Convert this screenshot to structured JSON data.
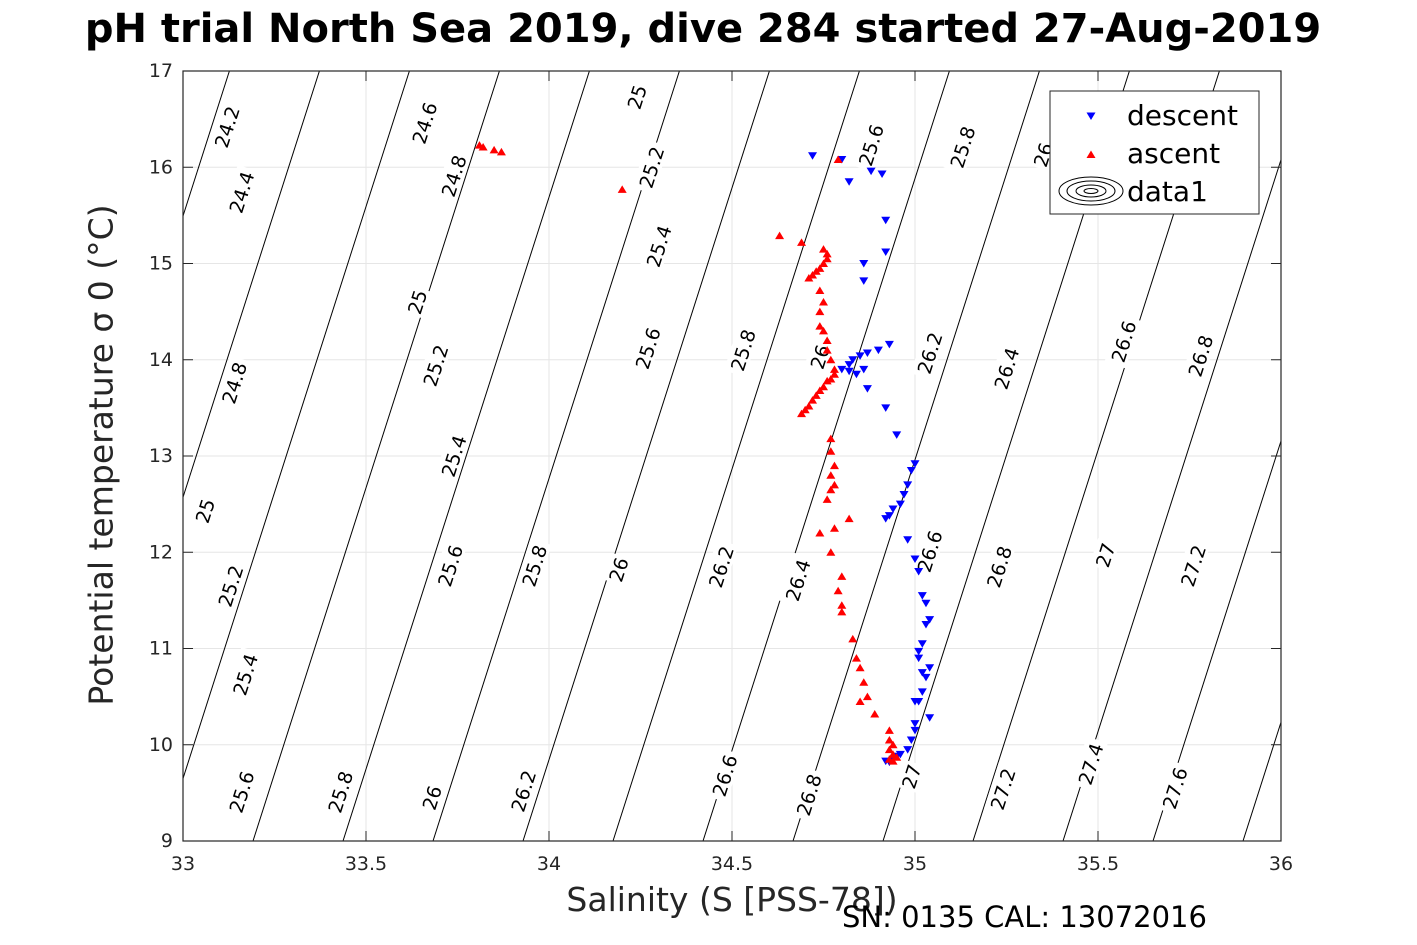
{
  "figure": {
    "title": "pH trial North Sea 2019, dive 284 started 27-Aug-2019",
    "footer": "SN: 0135  CAL: 13072016"
  },
  "chart_data": {
    "type": "scatter",
    "title": "pH trial North Sea 2019, dive 284 started 27-Aug-2019",
    "xlabel": "Salinity (S [PSS-78])",
    "ylabel": "Potential temperature σ 0 (°C)",
    "xlim": [
      33,
      36
    ],
    "ylim": [
      9,
      17
    ],
    "xticks": [
      33,
      33.5,
      34,
      34.5,
      35,
      35.5,
      36
    ],
    "xtick_labels": [
      "33",
      "33.5",
      "34",
      "34.5",
      "35",
      "35.5",
      "36"
    ],
    "yticks": [
      9,
      10,
      11,
      12,
      13,
      14,
      15,
      16,
      17
    ],
    "ytick_labels": [
      "9",
      "10",
      "11",
      "12",
      "13",
      "14",
      "15",
      "16",
      "17"
    ],
    "grid": true,
    "legend": {
      "position": "top-right",
      "entries": [
        "descent",
        "ascent",
        "data1"
      ]
    },
    "series": [
      {
        "name": "descent",
        "marker": "triangle-down",
        "color": "#0000ff",
        "points": [
          [
            34.72,
            16.12
          ],
          [
            34.8,
            16.08
          ],
          [
            34.82,
            15.85
          ],
          [
            34.88,
            15.96
          ],
          [
            34.91,
            15.93
          ],
          [
            34.92,
            15.45
          ],
          [
            34.92,
            15.12
          ],
          [
            34.86,
            15.0
          ],
          [
            34.86,
            14.82
          ],
          [
            34.8,
            13.9
          ],
          [
            34.82,
            13.95
          ],
          [
            34.83,
            14.0
          ],
          [
            34.85,
            14.04
          ],
          [
            34.87,
            14.07
          ],
          [
            34.9,
            14.1
          ],
          [
            34.93,
            14.16
          ],
          [
            34.84,
            13.85
          ],
          [
            34.86,
            13.9
          ],
          [
            34.87,
            13.7
          ],
          [
            34.82,
            13.88
          ],
          [
            34.92,
            13.5
          ],
          [
            34.95,
            13.22
          ],
          [
            35.0,
            12.92
          ],
          [
            34.99,
            12.85
          ],
          [
            34.98,
            12.7
          ],
          [
            34.97,
            12.6
          ],
          [
            34.96,
            12.5
          ],
          [
            34.94,
            12.45
          ],
          [
            34.93,
            12.38
          ],
          [
            34.92,
            12.35
          ],
          [
            34.98,
            12.13
          ],
          [
            35.0,
            11.93
          ],
          [
            35.01,
            11.8
          ],
          [
            35.02,
            11.55
          ],
          [
            35.03,
            11.47
          ],
          [
            35.04,
            11.3
          ],
          [
            35.03,
            11.25
          ],
          [
            35.02,
            11.05
          ],
          [
            35.01,
            10.97
          ],
          [
            35.01,
            10.9
          ],
          [
            35.02,
            10.75
          ],
          [
            35.03,
            10.7
          ],
          [
            35.04,
            10.8
          ],
          [
            35.02,
            10.55
          ],
          [
            35.01,
            10.45
          ],
          [
            35.0,
            10.45
          ],
          [
            35.04,
            10.28
          ],
          [
            35.0,
            10.22
          ],
          [
            35.0,
            10.15
          ],
          [
            34.99,
            10.05
          ],
          [
            34.98,
            9.95
          ],
          [
            34.96,
            9.9
          ],
          [
            34.95,
            9.88
          ],
          [
            34.94,
            9.85
          ],
          [
            34.93,
            9.82
          ],
          [
            34.92,
            9.83
          ]
        ]
      },
      {
        "name": "ascent",
        "marker": "triangle-up",
        "color": "#ff0000",
        "points": [
          [
            33.81,
            16.23
          ],
          [
            33.82,
            16.21
          ],
          [
            33.85,
            16.18
          ],
          [
            33.87,
            16.16
          ],
          [
            34.2,
            15.77
          ],
          [
            34.79,
            16.08
          ],
          [
            34.63,
            15.29
          ],
          [
            34.69,
            15.22
          ],
          [
            34.75,
            15.15
          ],
          [
            34.76,
            15.1
          ],
          [
            34.76,
            15.05
          ],
          [
            34.75,
            15.0
          ],
          [
            34.74,
            14.95
          ],
          [
            34.73,
            14.92
          ],
          [
            34.72,
            14.88
          ],
          [
            34.71,
            14.85
          ],
          [
            34.74,
            14.72
          ],
          [
            34.75,
            14.6
          ],
          [
            34.74,
            14.5
          ],
          [
            34.74,
            14.35
          ],
          [
            34.75,
            14.3
          ],
          [
            34.76,
            14.2
          ],
          [
            34.76,
            14.1
          ],
          [
            34.77,
            14.0
          ],
          [
            34.78,
            13.9
          ],
          [
            34.78,
            13.85
          ],
          [
            34.77,
            13.8
          ],
          [
            34.76,
            13.78
          ],
          [
            34.75,
            13.72
          ],
          [
            34.74,
            13.68
          ],
          [
            34.73,
            13.63
          ],
          [
            34.72,
            13.58
          ],
          [
            34.71,
            13.52
          ],
          [
            34.7,
            13.48
          ],
          [
            34.69,
            13.44
          ],
          [
            34.77,
            13.18
          ],
          [
            34.77,
            13.05
          ],
          [
            34.78,
            12.9
          ],
          [
            34.77,
            12.8
          ],
          [
            34.78,
            12.7
          ],
          [
            34.77,
            12.65
          ],
          [
            34.76,
            12.55
          ],
          [
            34.82,
            12.35
          ],
          [
            34.78,
            12.25
          ],
          [
            34.74,
            12.2
          ],
          [
            34.77,
            12.0
          ],
          [
            34.8,
            11.75
          ],
          [
            34.79,
            11.6
          ],
          [
            34.8,
            11.45
          ],
          [
            34.8,
            11.38
          ],
          [
            34.83,
            11.1
          ],
          [
            34.84,
            10.9
          ],
          [
            34.85,
            10.8
          ],
          [
            34.86,
            10.65
          ],
          [
            34.87,
            10.5
          ],
          [
            34.85,
            10.45
          ],
          [
            34.89,
            10.32
          ],
          [
            34.93,
            10.15
          ],
          [
            34.93,
            10.05
          ],
          [
            34.94,
            10.0
          ],
          [
            34.93,
            9.95
          ],
          [
            34.94,
            9.9
          ],
          [
            34.95,
            9.87
          ],
          [
            34.93,
            9.85
          ],
          [
            34.94,
            9.83
          ]
        ]
      }
    ],
    "contours": {
      "type": "sigma-theta isopycnals",
      "levels": [
        24.2,
        24.4,
        24.6,
        24.8,
        25,
        25.2,
        25.4,
        25.6,
        25.8,
        26,
        26.2,
        26.4,
        26.6,
        26.8,
        27,
        27.2,
        27.4,
        27.6
      ],
      "labels": [
        {
          "text": "24.2",
          "x": 33.12,
          "y": 16.42
        },
        {
          "text": "24.4",
          "x": 33.16,
          "y": 15.74
        },
        {
          "text": "24.6",
          "x": 33.66,
          "y": 16.46
        },
        {
          "text": "24.8",
          "x": 33.74,
          "y": 15.91
        },
        {
          "text": "25",
          "x": 34.24,
          "y": 16.73
        },
        {
          "text": "25.2",
          "x": 34.28,
          "y": 16.0
        },
        {
          "text": "25.4",
          "x": 34.3,
          "y": 15.18
        },
        {
          "text": "25.6",
          "x": 34.88,
          "y": 16.23
        },
        {
          "text": "25.8",
          "x": 35.13,
          "y": 16.21
        },
        {
          "text": "26",
          "x": 35.35,
          "y": 16.13
        },
        {
          "text": "25",
          "x": 33.64,
          "y": 14.6
        },
        {
          "text": "25.2",
          "x": 33.69,
          "y": 13.94
        },
        {
          "text": "25.6",
          "x": 34.27,
          "y": 14.12
        },
        {
          "text": "25.8",
          "x": 34.53,
          "y": 14.1
        },
        {
          "text": "26",
          "x": 34.74,
          "y": 14.03
        },
        {
          "text": "26.2",
          "x": 35.04,
          "y": 14.07
        },
        {
          "text": "26.4",
          "x": 35.25,
          "y": 13.91
        },
        {
          "text": "26.6",
          "x": 35.57,
          "y": 14.19
        },
        {
          "text": "26.8",
          "x": 35.78,
          "y": 14.04
        },
        {
          "text": "24.8",
          "x": 33.14,
          "y": 13.76
        },
        {
          "text": "25.4",
          "x": 33.74,
          "y": 13.0
        },
        {
          "text": "25",
          "x": 33.06,
          "y": 12.43
        },
        {
          "text": "25.2",
          "x": 33.13,
          "y": 11.65
        },
        {
          "text": "25.6",
          "x": 33.73,
          "y": 11.86
        },
        {
          "text": "25.8",
          "x": 33.96,
          "y": 11.86
        },
        {
          "text": "26",
          "x": 34.19,
          "y": 11.82
        },
        {
          "text": "26.2",
          "x": 34.47,
          "y": 11.85
        },
        {
          "text": "26.4",
          "x": 34.68,
          "y": 11.71
        },
        {
          "text": "26.6",
          "x": 35.04,
          "y": 12.01
        },
        {
          "text": "26.8",
          "x": 35.23,
          "y": 11.85
        },
        {
          "text": "27",
          "x": 35.52,
          "y": 11.97
        },
        {
          "text": "27.2",
          "x": 35.76,
          "y": 11.86
        },
        {
          "text": "25.4",
          "x": 33.17,
          "y": 10.73
        },
        {
          "text": "25.6",
          "x": 33.16,
          "y": 9.51
        },
        {
          "text": "25.8",
          "x": 33.43,
          "y": 9.51
        },
        {
          "text": "26",
          "x": 33.68,
          "y": 9.45
        },
        {
          "text": "26.2",
          "x": 33.93,
          "y": 9.52
        },
        {
          "text": "26.6",
          "x": 34.48,
          "y": 9.68
        },
        {
          "text": "26.8",
          "x": 34.71,
          "y": 9.48
        },
        {
          "text": "27",
          "x": 34.99,
          "y": 9.67
        },
        {
          "text": "27.2",
          "x": 35.24,
          "y": 9.54
        },
        {
          "text": "27.4",
          "x": 35.48,
          "y": 9.8
        },
        {
          "text": "27.6",
          "x": 35.71,
          "y": 9.55
        }
      ]
    }
  }
}
